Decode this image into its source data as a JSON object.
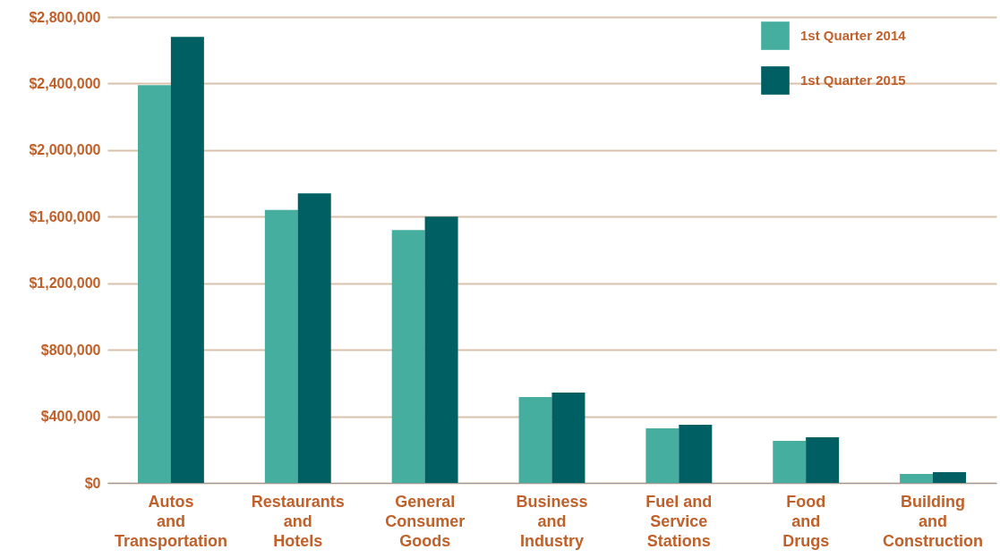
{
  "chart_data": {
    "type": "bar",
    "categories": [
      "Autos\nand\nTransportation",
      "Restaurants\nand\nHotels",
      "General\nConsumer\nGoods",
      "Business\nand\nIndustry",
      "Fuel and\nService\nStations",
      "Food\nand\nDrugs",
      "Building\nand\nConstruction"
    ],
    "series": [
      {
        "name": "1st Quarter 2014",
        "color": "#45ae9f",
        "values": [
          2390000,
          1640000,
          1520000,
          516000,
          328000,
          253000,
          54000
        ]
      },
      {
        "name": "1st Quarter 2015",
        "color": "#005f63",
        "values": [
          2680000,
          1740000,
          1600000,
          543000,
          350000,
          274000,
          65000
        ]
      }
    ],
    "ylim": [
      0,
      2800000
    ],
    "yticks": [
      {
        "value": 0,
        "label": "$0"
      },
      {
        "value": 400000,
        "label": "$400,000"
      },
      {
        "value": 800000,
        "label": "$800,000"
      },
      {
        "value": 1200000,
        "label": "$1,200,000"
      },
      {
        "value": 1600000,
        "label": "$1,600,000"
      },
      {
        "value": 2000000,
        "label": "$2,000,000"
      },
      {
        "value": 2400000,
        "label": "$2,400,000"
      },
      {
        "value": 2800000,
        "label": "$2,800,000"
      }
    ],
    "grid": "y",
    "legend": "top right"
  }
}
